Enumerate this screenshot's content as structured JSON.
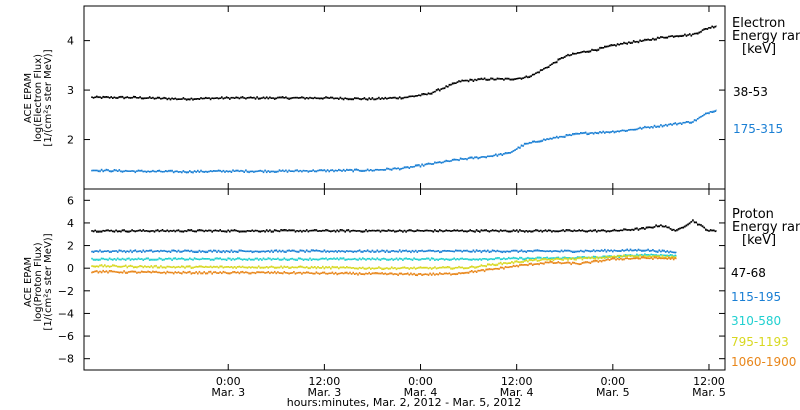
{
  "chart_data": {
    "type": "scatter",
    "xlabel": "hours:minutes, Mar. 2, 2012 - Mar. 5, 2012",
    "x_axis": {
      "unit": "hours since 2012-03-02 00:00",
      "range": [
        6,
        86
      ],
      "ticks": [
        {
          "value": 24,
          "time": "0:00",
          "day": "Mar. 3"
        },
        {
          "value": 36,
          "time": "12:00",
          "day": "Mar. 3"
        },
        {
          "value": 48,
          "time": "0:00",
          "day": "Mar. 4"
        },
        {
          "value": 60,
          "time": "12:00",
          "day": "Mar. 4"
        },
        {
          "value": 72,
          "time": "0:00",
          "day": "Mar. 5"
        },
        {
          "value": 84,
          "time": "12:00",
          "day": "Mar. 5"
        }
      ]
    },
    "panels": [
      {
        "id": "electron",
        "ylabel_lines": [
          "ACE EPAM",
          "log(Electron Flux)",
          "[1/(cm²s ster MeV)]"
        ],
        "ylim": [
          1.0,
          4.7
        ],
        "yticks": [
          2,
          3,
          4
        ],
        "legend_title": [
          "Electron",
          "Energy ran",
          "[keV]"
        ],
        "series": [
          {
            "name": "38-53",
            "color": "#000000",
            "x": [
              7,
              12,
              18,
              24,
              30,
              36,
              42,
              46,
              49,
              51,
              53,
              56,
              59,
              61,
              62,
              64,
              66,
              68,
              70,
              72,
              74,
              76,
              78,
              80,
              82,
              84,
              85
            ],
            "y": [
              2.85,
              2.85,
              2.82,
              2.84,
              2.84,
              2.84,
              2.82,
              2.85,
              2.92,
              3.05,
              3.18,
              3.22,
              3.22,
              3.25,
              3.3,
              3.48,
              3.68,
              3.76,
              3.82,
              3.9,
              3.96,
              4.0,
              4.06,
              4.1,
              4.12,
              4.26,
              4.3
            ]
          },
          {
            "name": "175-315",
            "color": "#1a7fd4",
            "x": [
              7,
              12,
              18,
              24,
              30,
              36,
              42,
              46,
              49,
              53,
              56,
              59,
              61,
              63,
              66,
              68,
              70,
              72,
              74,
              76,
              78,
              80,
              82,
              84,
              85
            ],
            "y": [
              1.38,
              1.36,
              1.35,
              1.36,
              1.36,
              1.37,
              1.38,
              1.42,
              1.5,
              1.6,
              1.65,
              1.72,
              1.9,
              1.98,
              2.07,
              2.12,
              2.14,
              2.16,
              2.19,
              2.24,
              2.28,
              2.32,
              2.36,
              2.55,
              2.6
            ]
          }
        ]
      },
      {
        "id": "proton",
        "ylabel_lines": [
          "ACE EPAM",
          "log(Proton Flux)",
          "[1/(cm²s ster MeV)]"
        ],
        "ylim": [
          -9,
          7
        ],
        "yticks": [
          -8,
          -6,
          -4,
          -2,
          0,
          2,
          4,
          6
        ],
        "legend_title": [
          "Proton",
          "Energy ran",
          "[keV]"
        ],
        "series": [
          {
            "name": "47-68",
            "color": "#000000",
            "x": [
              7,
              12,
              18,
              24,
              30,
              36,
              42,
              48,
              54,
              60,
              66,
              72,
              76,
              78,
              80,
              82,
              84,
              85
            ],
            "y": [
              3.3,
              3.3,
              3.3,
              3.3,
              3.3,
              3.3,
              3.3,
              3.3,
              3.3,
              3.3,
              3.3,
              3.3,
              3.5,
              3.8,
              3.3,
              4.2,
              3.3,
              3.3
            ]
          },
          {
            "name": "115-195",
            "color": "#1a7fd4",
            "x": [
              7,
              12,
              18,
              24,
              30,
              36,
              42,
              48,
              54,
              60,
              66,
              72,
              76,
              80
            ],
            "y": [
              1.5,
              1.5,
              1.5,
              1.5,
              1.5,
              1.5,
              1.5,
              1.5,
              1.5,
              1.5,
              1.5,
              1.55,
              1.6,
              1.4
            ]
          },
          {
            "name": "310-580",
            "color": "#20d0d0",
            "x": [
              7,
              12,
              18,
              24,
              30,
              36,
              42,
              48,
              54,
              60,
              66,
              72,
              76,
              80
            ],
            "y": [
              0.8,
              0.8,
              0.8,
              0.8,
              0.8,
              0.8,
              0.8,
              0.8,
              0.8,
              0.85,
              0.9,
              1.0,
              1.2,
              1.1
            ]
          },
          {
            "name": "795-1193",
            "color": "#d8d820",
            "x": [
              7,
              12,
              18,
              24,
              30,
              36,
              42,
              48,
              54,
              58,
              62,
              66,
              70,
              74,
              78,
              80
            ],
            "y": [
              0.2,
              0.15,
              0.1,
              0.1,
              0.1,
              0.05,
              0.0,
              0.0,
              0.05,
              0.4,
              0.7,
              0.8,
              0.9,
              1.1,
              1.0,
              1.0
            ]
          },
          {
            "name": "1060-1900",
            "color": "#e8861a",
            "x": [
              7,
              12,
              18,
              24,
              30,
              36,
              42,
              48,
              52,
              56,
              60,
              64,
              68,
              72,
              76,
              80
            ],
            "y": [
              -0.3,
              -0.35,
              -0.4,
              -0.4,
              -0.4,
              -0.45,
              -0.5,
              -0.55,
              -0.5,
              -0.2,
              0.2,
              0.5,
              0.4,
              0.8,
              0.9,
              0.85
            ]
          }
        ]
      }
    ]
  }
}
